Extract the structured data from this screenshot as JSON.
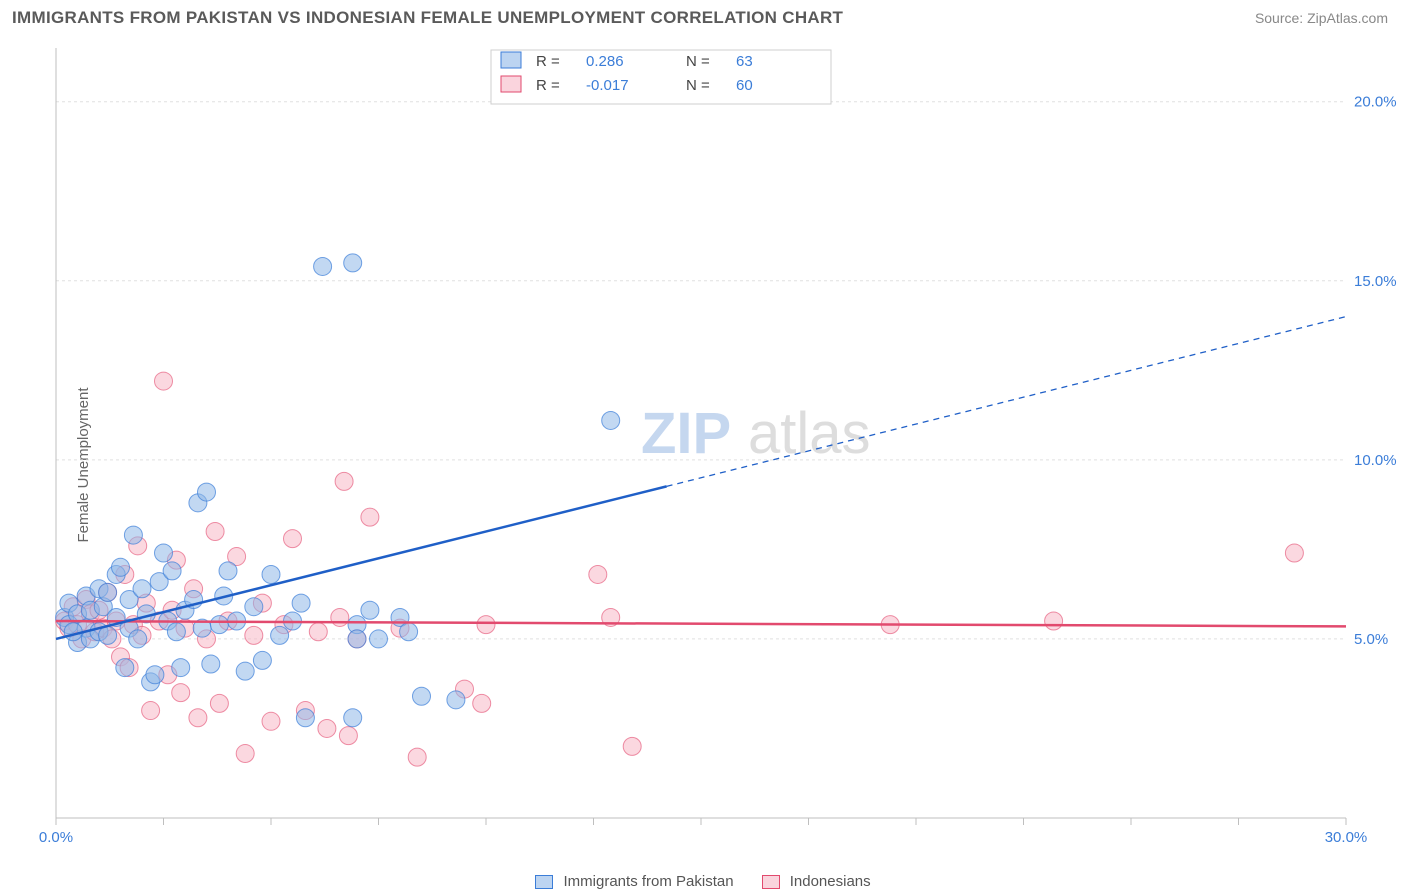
{
  "title": "IMMIGRANTS FROM PAKISTAN VS INDONESIAN FEMALE UNEMPLOYMENT CORRELATION CHART",
  "source_label": "Source: ZipAtlas.com",
  "y_axis_label": "Female Unemployment",
  "watermark_left": "ZIP",
  "watermark_right": "atlas",
  "chart": {
    "type": "scatter-with-regression",
    "xlim": [
      0,
      30
    ],
    "ylim": [
      0,
      21.5
    ],
    "y_ticks": [
      5.0,
      10.0,
      15.0,
      20.0
    ],
    "x_ticks_minor_step": 2.5,
    "x_tick_end_labels": {
      "left": "0.0%",
      "right": "30.0%"
    },
    "y_tick_format_suffix": "%",
    "grid_color": "#e0e0e0",
    "axis_color": "#bfbfbf",
    "background_color": "#ffffff",
    "marker_radius": 9,
    "series": {
      "blue": {
        "label": "Immigrants from Pakistan",
        "fill": "#8fb8e8",
        "stroke": "#3b7dd8",
        "R": "0.286",
        "N": "63",
        "regression": {
          "x1": 0,
          "y1": 5.0,
          "x2": 30,
          "y2": 14.0,
          "solid_until_x": 14.2
        },
        "points": [
          [
            0.2,
            5.6
          ],
          [
            0.3,
            5.4
          ],
          [
            0.3,
            6.0
          ],
          [
            0.5,
            5.7
          ],
          [
            0.5,
            4.9
          ],
          [
            0.7,
            5.3
          ],
          [
            0.7,
            6.2
          ],
          [
            0.8,
            5.8
          ],
          [
            0.8,
            5.0
          ],
          [
            1.0,
            5.2
          ],
          [
            1.0,
            6.4
          ],
          [
            1.1,
            5.9
          ],
          [
            1.2,
            6.3
          ],
          [
            1.2,
            5.1
          ],
          [
            1.4,
            5.6
          ],
          [
            1.4,
            6.8
          ],
          [
            1.5,
            7.0
          ],
          [
            1.6,
            4.2
          ],
          [
            1.7,
            5.3
          ],
          [
            1.7,
            6.1
          ],
          [
            1.8,
            7.9
          ],
          [
            1.9,
            5.0
          ],
          [
            2.0,
            6.4
          ],
          [
            2.1,
            5.7
          ],
          [
            2.2,
            3.8
          ],
          [
            2.3,
            4.0
          ],
          [
            2.4,
            6.6
          ],
          [
            2.5,
            7.4
          ],
          [
            2.6,
            5.5
          ],
          [
            2.7,
            6.9
          ],
          [
            2.8,
            5.2
          ],
          [
            2.9,
            4.2
          ],
          [
            3.0,
            5.8
          ],
          [
            3.2,
            6.1
          ],
          [
            3.3,
            8.8
          ],
          [
            3.4,
            5.3
          ],
          [
            3.5,
            9.1
          ],
          [
            3.6,
            4.3
          ],
          [
            3.8,
            5.4
          ],
          [
            3.9,
            6.2
          ],
          [
            4.0,
            6.9
          ],
          [
            4.2,
            5.5
          ],
          [
            4.4,
            4.1
          ],
          [
            4.6,
            5.9
          ],
          [
            4.8,
            4.4
          ],
          [
            5.0,
            6.8
          ],
          [
            5.2,
            5.1
          ],
          [
            5.5,
            5.5
          ],
          [
            5.7,
            6.0
          ],
          [
            5.8,
            2.8
          ],
          [
            6.2,
            15.4
          ],
          [
            6.9,
            15.5
          ],
          [
            6.9,
            2.8
          ],
          [
            7.0,
            5.4
          ],
          [
            7.3,
            5.8
          ],
          [
            7.5,
            5.0
          ],
          [
            8.0,
            5.6
          ],
          [
            8.2,
            5.2
          ],
          [
            8.5,
            3.4
          ],
          [
            9.3,
            3.3
          ],
          [
            12.9,
            11.1
          ],
          [
            7.0,
            5.0
          ],
          [
            0.4,
            5.2
          ]
        ]
      },
      "pink": {
        "label": "Indonesians",
        "fill": "#f7b8c6",
        "stroke": "#e24a6e",
        "R": "-0.017",
        "N": "60",
        "regression": {
          "x1": 0,
          "y1": 5.5,
          "x2": 30,
          "y2": 5.35
        },
        "points": [
          [
            0.2,
            5.5
          ],
          [
            0.3,
            5.3
          ],
          [
            0.4,
            5.9
          ],
          [
            0.5,
            5.4
          ],
          [
            0.6,
            5.0
          ],
          [
            0.7,
            6.1
          ],
          [
            0.8,
            5.7
          ],
          [
            0.9,
            5.2
          ],
          [
            1.0,
            5.8
          ],
          [
            1.1,
            5.3
          ],
          [
            1.2,
            6.3
          ],
          [
            1.3,
            5.0
          ],
          [
            1.4,
            5.5
          ],
          [
            1.5,
            4.5
          ],
          [
            1.6,
            6.8
          ],
          [
            1.7,
            4.2
          ],
          [
            1.8,
            5.4
          ],
          [
            1.9,
            7.6
          ],
          [
            2.0,
            5.1
          ],
          [
            2.1,
            6.0
          ],
          [
            2.2,
            3.0
          ],
          [
            2.4,
            5.5
          ],
          [
            2.5,
            12.2
          ],
          [
            2.6,
            4.0
          ],
          [
            2.7,
            5.8
          ],
          [
            2.8,
            7.2
          ],
          [
            2.9,
            3.5
          ],
          [
            3.0,
            5.3
          ],
          [
            3.2,
            6.4
          ],
          [
            3.3,
            2.8
          ],
          [
            3.5,
            5.0
          ],
          [
            3.7,
            8.0
          ],
          [
            3.8,
            3.2
          ],
          [
            4.0,
            5.5
          ],
          [
            4.2,
            7.3
          ],
          [
            4.4,
            1.8
          ],
          [
            4.6,
            5.1
          ],
          [
            4.8,
            6.0
          ],
          [
            5.0,
            2.7
          ],
          [
            5.3,
            5.4
          ],
          [
            5.5,
            7.8
          ],
          [
            5.8,
            3.0
          ],
          [
            6.1,
            5.2
          ],
          [
            6.3,
            2.5
          ],
          [
            6.6,
            5.6
          ],
          [
            6.7,
            9.4
          ],
          [
            6.8,
            2.3
          ],
          [
            7.3,
            8.4
          ],
          [
            8.0,
            5.3
          ],
          [
            8.4,
            1.7
          ],
          [
            9.5,
            3.6
          ],
          [
            9.9,
            3.2
          ],
          [
            10.0,
            5.4
          ],
          [
            12.6,
            6.8
          ],
          [
            12.9,
            5.6
          ],
          [
            13.4,
            2.0
          ],
          [
            19.4,
            5.4
          ],
          [
            23.2,
            5.5
          ],
          [
            28.8,
            7.4
          ],
          [
            7.0,
            5.0
          ]
        ]
      }
    }
  },
  "legend_top": {
    "rows": [
      {
        "swatch": "blue",
        "R_label": "R =",
        "R": "0.286",
        "N_label": "N =",
        "N": "63"
      },
      {
        "swatch": "pink",
        "R_label": "R =",
        "R": "-0.017",
        "N_label": "N =",
        "N": "60"
      }
    ]
  },
  "bottom_legend": {
    "items": [
      {
        "swatch": "blue",
        "label": "Immigrants from Pakistan"
      },
      {
        "swatch": "pink",
        "label": "Indonesians"
      }
    ]
  }
}
